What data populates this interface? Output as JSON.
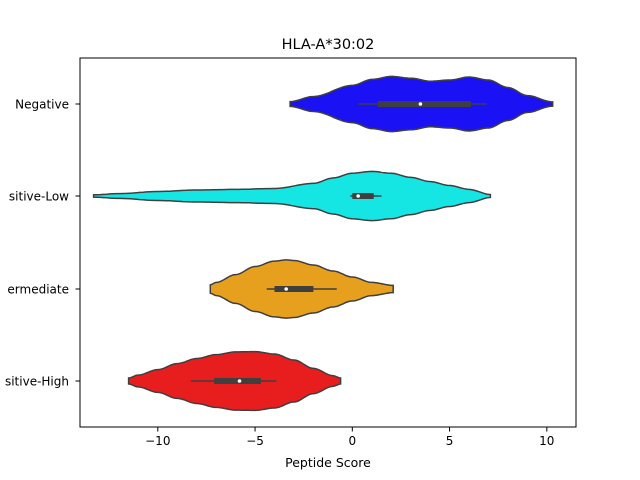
{
  "chart_data": {
    "type": "violin",
    "title": "HLA-A*30:02",
    "xlabel": "Peptide Score",
    "ylabel": "",
    "xlim": [
      -14.0,
      11.5
    ],
    "xticks": [
      -10,
      -5,
      0,
      5,
      10
    ],
    "xtick_labels": [
      "−10",
      "−5",
      "0",
      "5",
      "10"
    ],
    "categories": [
      "Negative",
      "Positive-Low",
      "Intermediate",
      "Positive-High"
    ],
    "visible_category_labels": [
      "Negative",
      "sitive-Low",
      "ermediate",
      "sitive-High"
    ],
    "violins": [
      {
        "category": "Negative",
        "color": "#1a12f5",
        "min": -3.2,
        "max": 10.3,
        "q1": 1.3,
        "median": 3.5,
        "q3": 6.1,
        "whisker_low": 0.3,
        "whisker_high": 6.9,
        "density_y": [
          -3.2,
          -2,
          0,
          1,
          2,
          3,
          4,
          5,
          6,
          7,
          8,
          9,
          10.3
        ],
        "density_w": [
          0.08,
          0.25,
          0.62,
          0.82,
          0.92,
          0.86,
          0.76,
          0.8,
          0.9,
          0.8,
          0.55,
          0.28,
          0.07
        ]
      },
      {
        "category": "Positive-Low",
        "color": "#16e6e3",
        "min": -13.3,
        "max": 7.1,
        "q1": 0.0,
        "median": 0.3,
        "q3": 1.1,
        "whisker_low": -0.1,
        "whisker_high": 1.5,
        "density_y": [
          -13.3,
          -12,
          -10,
          -8,
          -6,
          -4,
          -2,
          -1,
          0,
          1,
          2,
          3,
          4,
          5,
          6,
          7.1
        ],
        "density_w": [
          0.04,
          0.08,
          0.15,
          0.2,
          0.22,
          0.25,
          0.42,
          0.6,
          0.76,
          0.82,
          0.76,
          0.62,
          0.48,
          0.35,
          0.22,
          0.05
        ]
      },
      {
        "category": "Intermediate",
        "color": "#e6a01e",
        "min": -7.3,
        "max": 2.1,
        "q1": -4.0,
        "median": -3.4,
        "q3": -2.0,
        "whisker_low": -4.4,
        "whisker_high": -0.8,
        "density_y": [
          -7.3,
          -7,
          -6,
          -5,
          -4,
          -3.4,
          -3,
          -2,
          -1,
          0,
          1,
          2.1
        ],
        "density_w": [
          0.14,
          0.22,
          0.48,
          0.75,
          0.93,
          0.97,
          0.95,
          0.8,
          0.6,
          0.4,
          0.22,
          0.12
        ]
      },
      {
        "category": "Positive-High",
        "color": "#e81e1e",
        "min": -11.5,
        "max": -0.6,
        "q1": -7.1,
        "median": -5.8,
        "q3": -4.7,
        "whisker_low": -8.3,
        "whisker_high": -3.9,
        "density_y": [
          -11.5,
          -11,
          -10,
          -9,
          -8,
          -7,
          -6,
          -5,
          -4,
          -3,
          -2,
          -1,
          -0.6
        ],
        "density_w": [
          0.1,
          0.2,
          0.38,
          0.58,
          0.75,
          0.88,
          0.97,
          0.98,
          0.9,
          0.7,
          0.42,
          0.18,
          0.1
        ]
      }
    ],
    "grid": false,
    "legend": "none"
  }
}
